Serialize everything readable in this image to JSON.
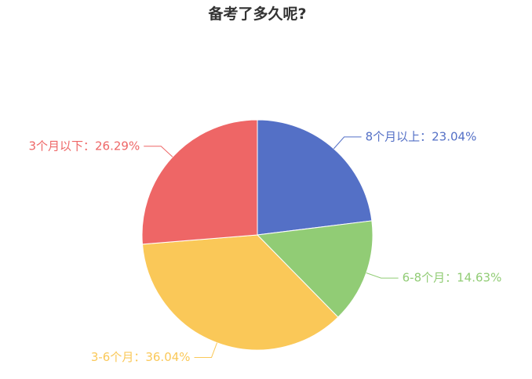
{
  "chart_data": {
    "type": "pie",
    "title": "备考了多久呢?",
    "slices": [
      {
        "label": "8个月以上",
        "value": 23.04,
        "display": "8个月以上：23.04%",
        "color": "#5470c6"
      },
      {
        "label": "6-8个月",
        "value": 14.63,
        "display": "6-8个月：14.63%",
        "color": "#91cc75"
      },
      {
        "label": "3-6个月",
        "value": 36.04,
        "display": "3-6个月：36.04%",
        "color": "#fac858"
      },
      {
        "label": "3个月以下",
        "value": 26.29,
        "display": "3个月以下：26.29%",
        "color": "#ee6666"
      }
    ],
    "legend": "none",
    "start_angle": "12 o'clock",
    "direction": "clockwise",
    "labels": "outside with leader lines"
  }
}
